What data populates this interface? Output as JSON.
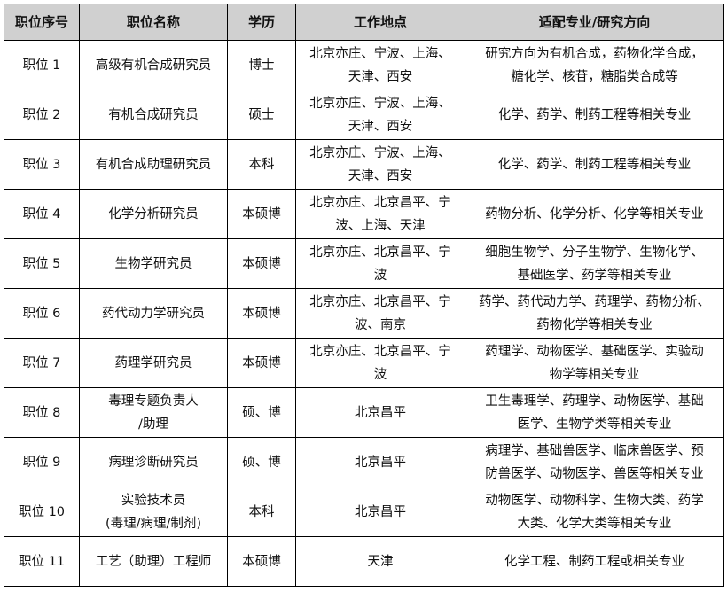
{
  "headers": [
    "职位序号",
    "职位名称",
    "学历",
    "工作地点",
    "适配专业/研究方向"
  ],
  "rows": [
    [
      "职位 1",
      "高级有机合成研究员",
      "博士",
      "北京亦庄、宁波、上海、\n天津、西安",
      "研究方向为有机合成，药物化学合成，\n糖化学、核苷，糖脂类合成等"
    ],
    [
      "职位 2",
      "有机合成研究员",
      "硕士",
      "北京亦庄、宁波、上海、\n天津、西安",
      "化学、药学、制药工程等相关专业"
    ],
    [
      "职位 3",
      "有机合成助理研究员",
      "本科",
      "北京亦庄、宁波、上海、\n天津、西安",
      "化学、药学、制药工程等相关专业"
    ],
    [
      "职位 4",
      "化学分析研究员",
      "本硕博",
      "北京亦庄、北京昌平、宁\n波、上海、天津",
      "药物分析、化学分析、化学等相关专业"
    ],
    [
      "职位 5",
      "生物学研究员",
      "本硕博",
      "北京亦庄、北京昌平、宁\n波",
      "细胞生物学、分子生物学、生物化学、\n基础医学、药学等相关专业"
    ],
    [
      "职位 6",
      "药代动力学研究员",
      "本硕博",
      "北京亦庄、北京昌平、宁\n波、南京",
      "药学、药代动力学、药理学、药物分析、\n药物化学等相关专业"
    ],
    [
      "职位 7",
      "药理学研究员",
      "本硕博",
      "北京亦庄、北京昌平、宁\n波",
      "药理学、动物医学、基础医学、实验动\n物学等相关专业"
    ],
    [
      "职位 8",
      "毒理专题负责人\n/助理",
      "硕、博",
      "北京昌平",
      "卫生毒理学、药理学、动物医学、基础\n医学、生物学类等相关专业"
    ],
    [
      "职位 9",
      "病理诊断研究员",
      "硕、博",
      "北京昌平",
      "病理学、基础兽医学、临床兽医学、预\n防兽医学、动物医学、兽医等相关专业"
    ],
    [
      "职位 10",
      "实验技术员\n(毒理/病理/制剂)",
      "本科",
      "北京昌平",
      "动物医学、动物科学、生物大类、药学\n大类、化学大类等相关专业"
    ],
    [
      "职位 11",
      "工艺（助理）工程师",
      "本硕博",
      "天津",
      "化学工程、制药工程或相关专业"
    ]
  ]
}
